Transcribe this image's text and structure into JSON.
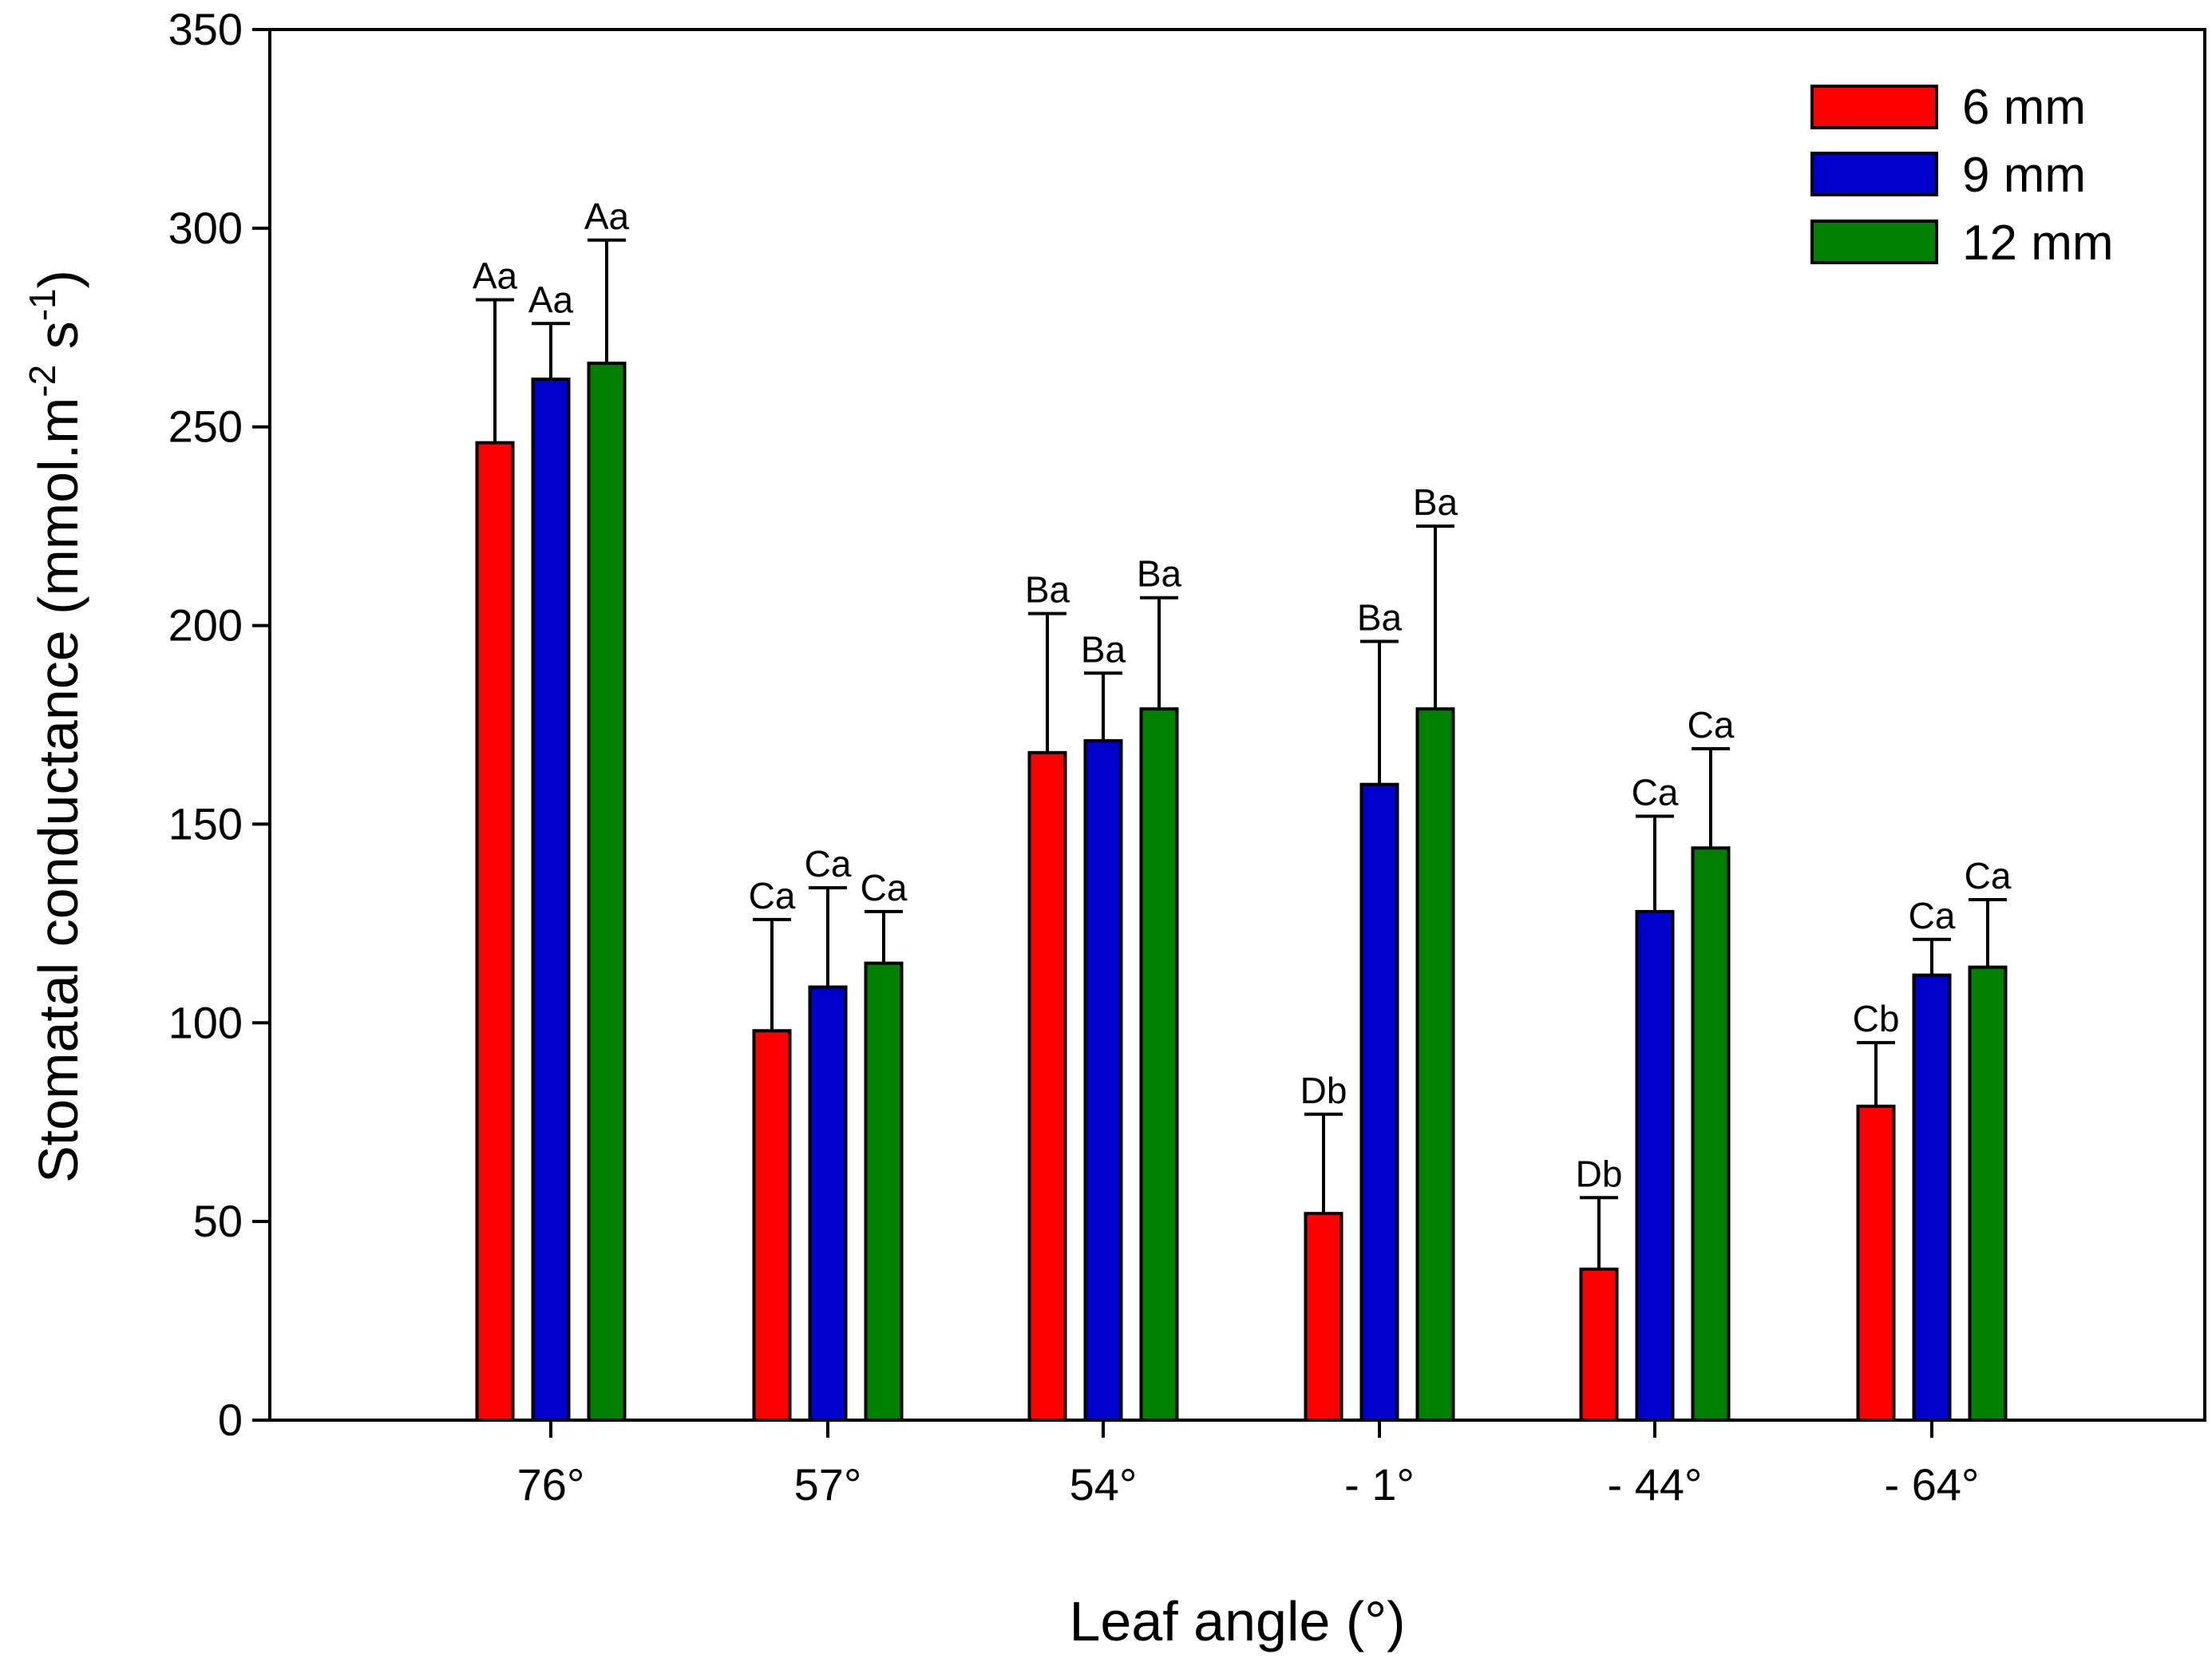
{
  "chart_data": {
    "type": "bar",
    "title": "",
    "xlabel": "Leaf angle (°)",
    "ylabel": {
      "main": "Stomatal conductance (mmol.m",
      "sup1": "-2",
      "mid": " s",
      "sup2": "-1",
      "end": ")"
    },
    "ylim": [
      0,
      350
    ],
    "yticks": [
      0,
      50,
      100,
      150,
      200,
      250,
      300,
      350
    ],
    "categories": [
      "76°",
      "57°",
      "54°",
      "- 1°",
      "- 44°",
      "- 64°"
    ],
    "legend_position": "top-right",
    "series": [
      {
        "name": "6 mm",
        "color": "#ff0000",
        "values": [
          246,
          98,
          168,
          52,
          38,
          79
        ],
        "errors": [
          36,
          28,
          35,
          25,
          18,
          16
        ],
        "labels": [
          "Aa",
          "Ca",
          "Ba",
          "Db",
          "Db",
          "Cb"
        ]
      },
      {
        "name": "9 mm",
        "color": "#0000cc",
        "values": [
          262,
          109,
          171,
          160,
          128,
          112
        ],
        "errors": [
          14,
          25,
          17,
          36,
          24,
          9
        ],
        "labels": [
          "Aa",
          "Ca",
          "Ba",
          "Ba",
          "Ca",
          "Ca"
        ]
      },
      {
        "name": "12 mm",
        "color": "#008000",
        "values": [
          266,
          115,
          179,
          179,
          144,
          114
        ],
        "errors": [
          31,
          13,
          28,
          46,
          25,
          17
        ],
        "labels": [
          "Aa",
          "Ca",
          "Ba",
          "Ba",
          "Ca",
          "Ca"
        ]
      }
    ]
  }
}
